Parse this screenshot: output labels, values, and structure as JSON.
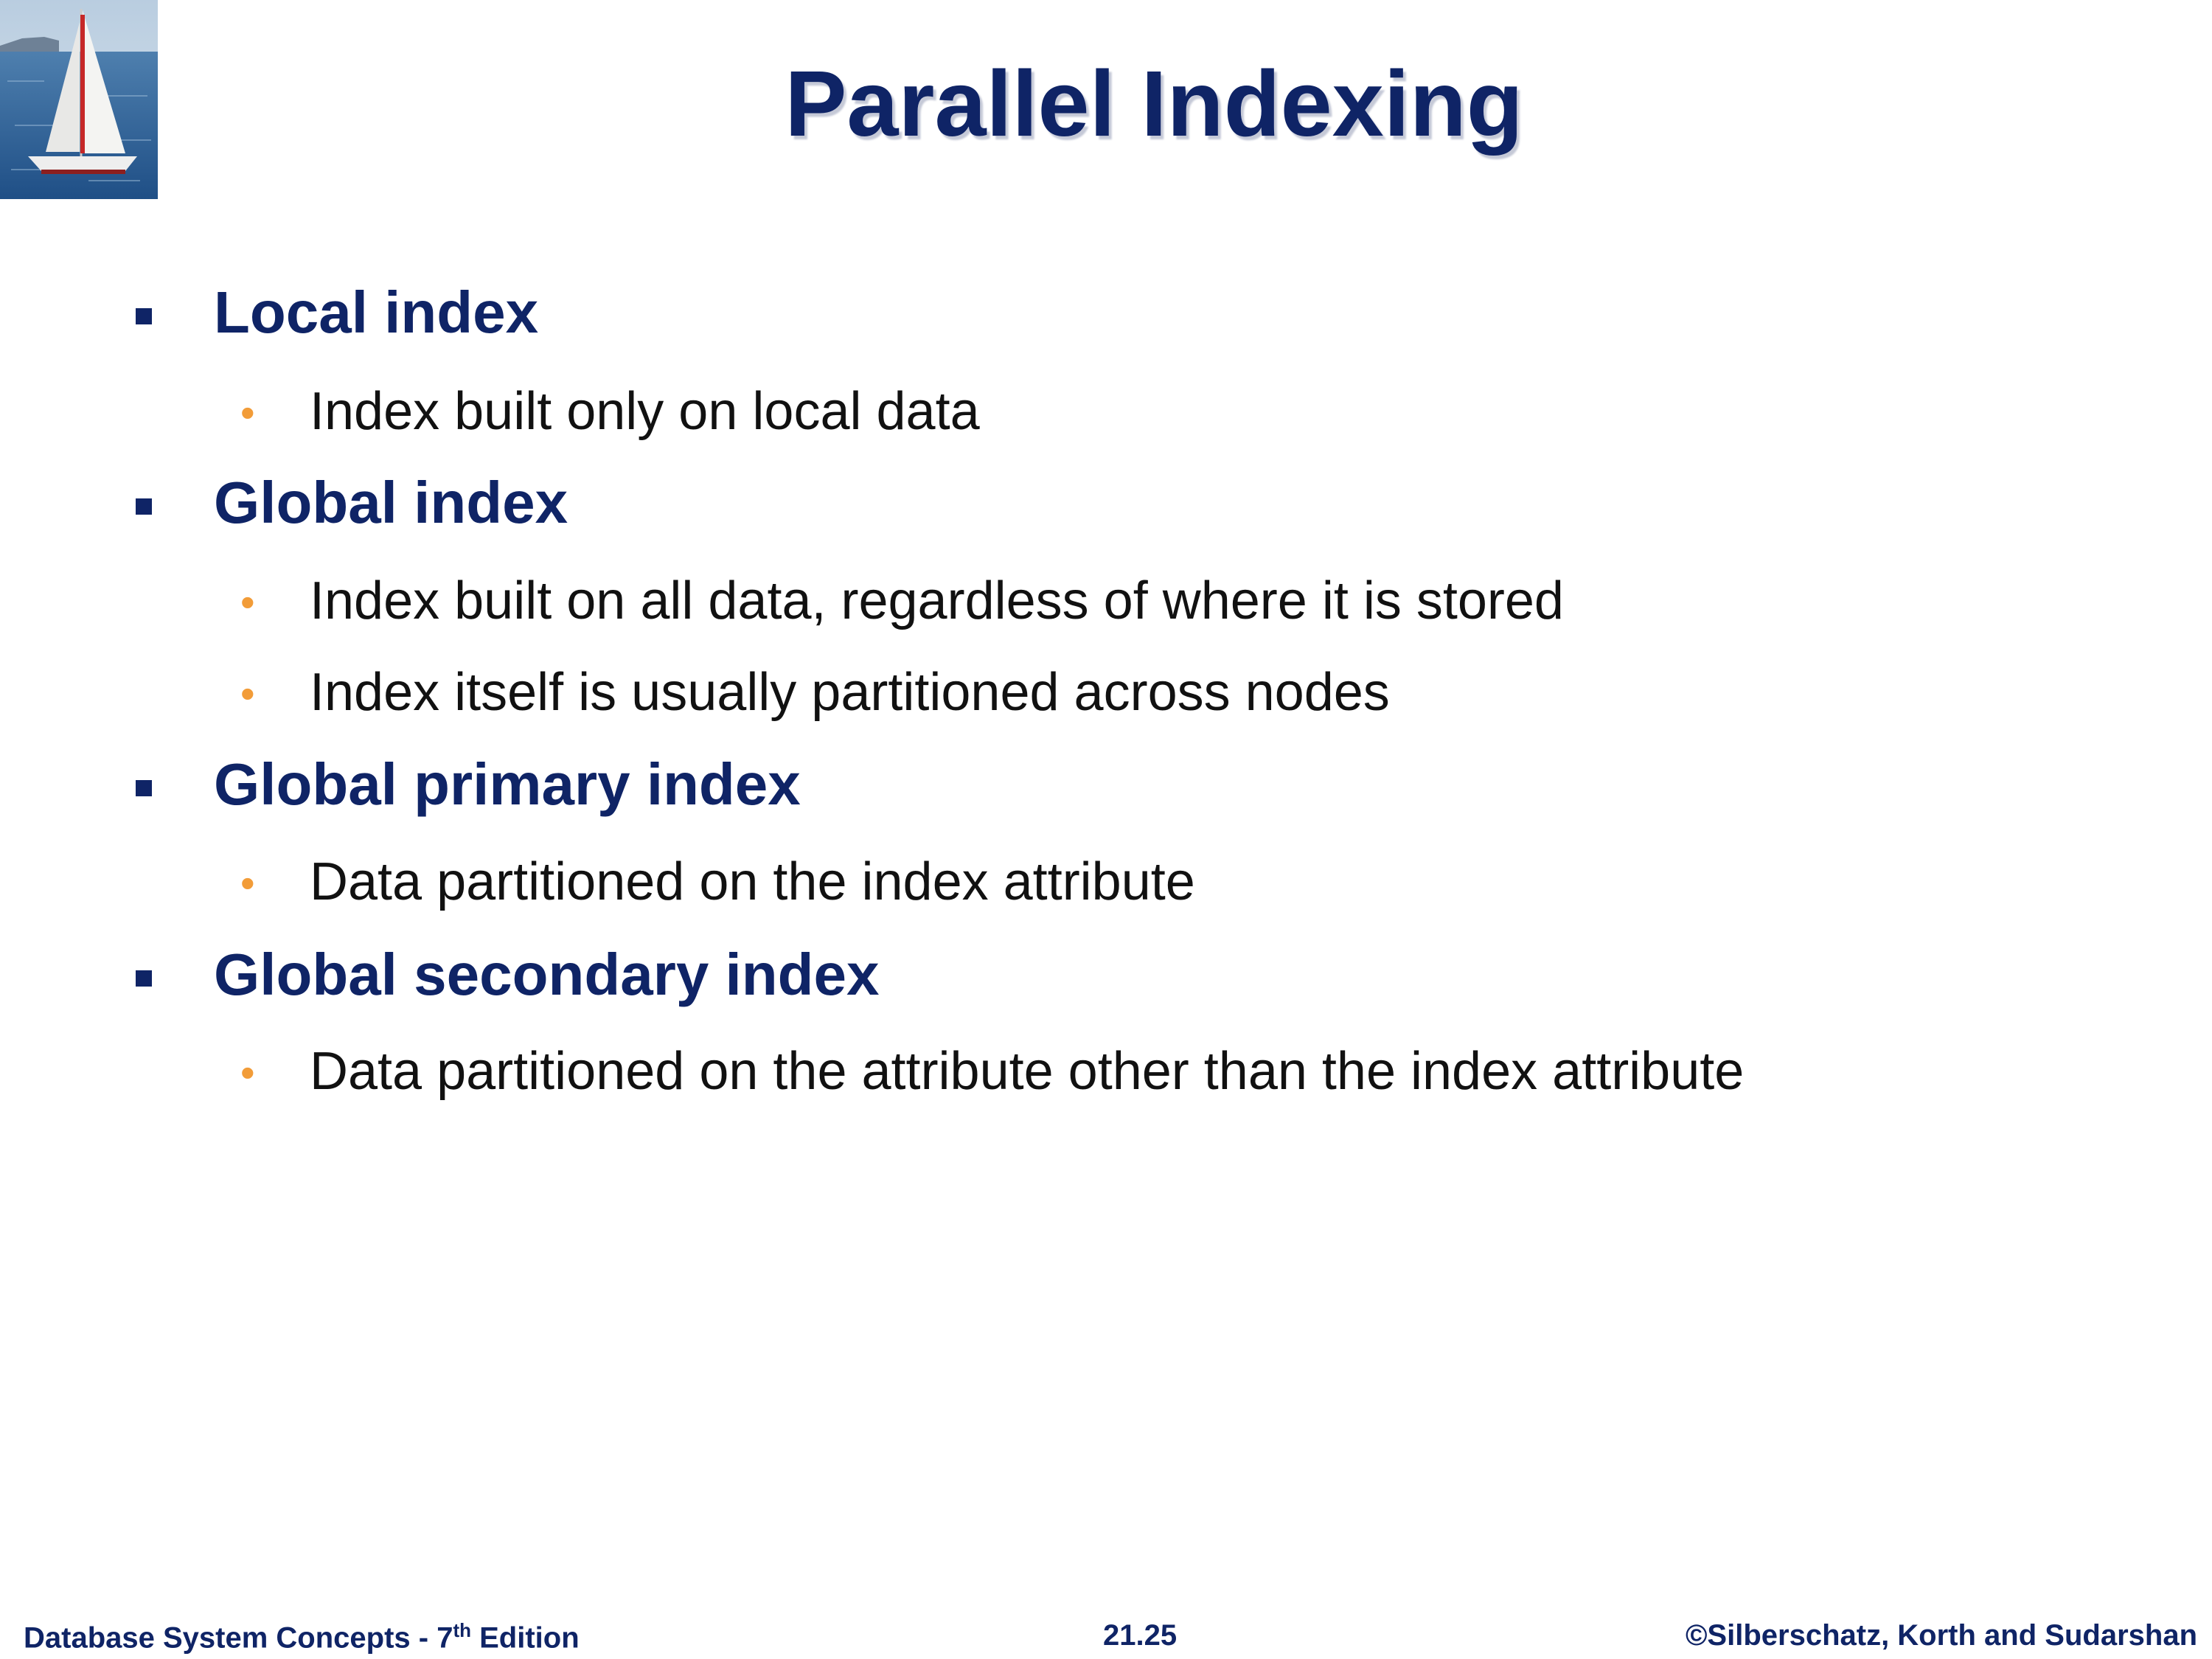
{
  "title": "Parallel Indexing",
  "bullets": [
    {
      "label": "Local index",
      "children": [
        "Index built only on local data"
      ]
    },
    {
      "label": "Global index",
      "children": [
        "Index built on all data, regardless of where it is stored",
        "Index itself is usually partitioned across nodes"
      ]
    },
    {
      "label": "Global primary index",
      "children": [
        "Data partitioned on the index attribute"
      ]
    },
    {
      "label": "Global secondary index",
      "children": [
        "Data partitioned on the attribute other than the index attribute"
      ]
    }
  ],
  "footer": {
    "left_main": "Database System Concepts - 7",
    "left_sup": "th",
    "left_tail": " Edition",
    "center": "21.25",
    "right": "©Silberschatz, Korth and Sudarshan"
  },
  "colors": {
    "title": "#0f2466",
    "level1": "#0f2466",
    "level2_bullet": "#f29c38",
    "body_text": "#111111"
  },
  "icons": {
    "logo": "sailboat-image",
    "level1_bullet": "square-bullet-icon",
    "level2_bullet": "dot-bullet-icon"
  }
}
